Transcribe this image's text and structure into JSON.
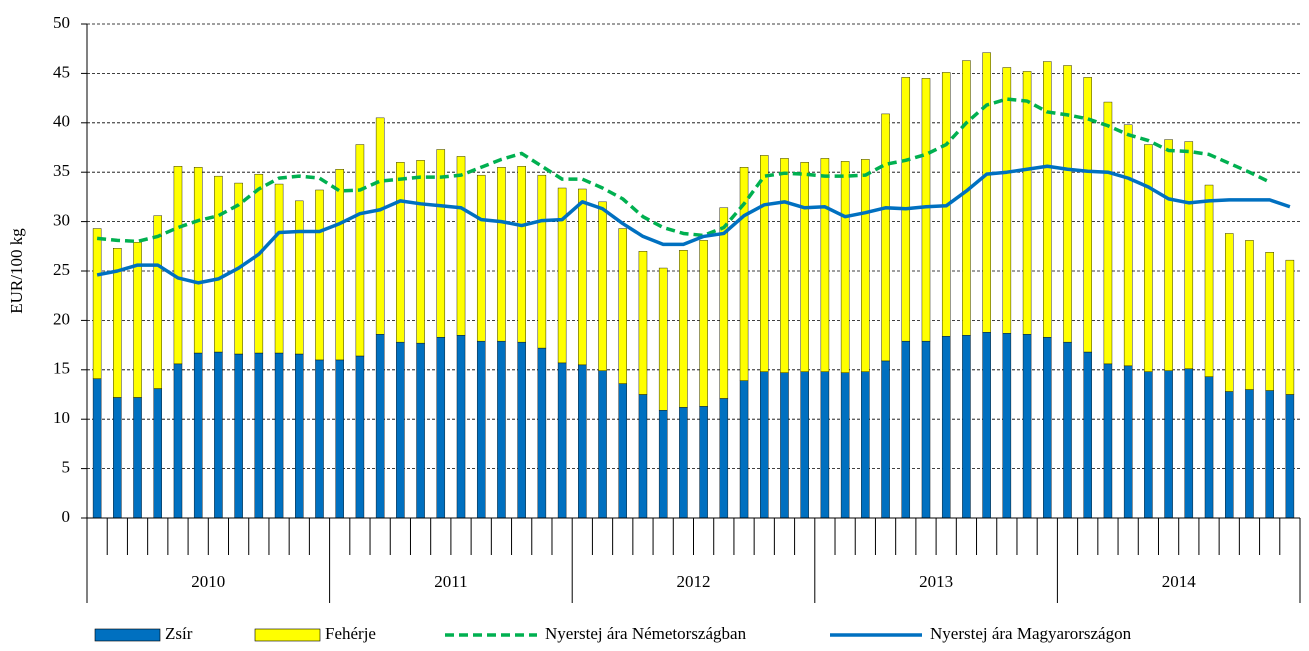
{
  "chart_data": {
    "type": "bar",
    "stacked": true,
    "y_label": "EUR/100 kg",
    "categories": [
      null,
      null,
      null,
      null,
      null,
      null,
      null,
      null,
      null,
      null,
      null,
      null,
      null,
      null,
      null,
      null,
      null,
      null,
      null,
      null,
      null,
      null,
      null,
      null,
      null,
      null,
      null,
      null,
      null,
      null,
      null,
      null,
      null,
      null,
      null,
      null,
      null,
      null,
      null,
      null,
      null,
      null,
      null,
      null,
      null,
      null,
      null,
      null,
      null,
      null,
      null,
      null,
      null,
      null,
      null,
      null,
      null,
      null,
      null,
      null
    ],
    "year_labels": [
      "2010",
      "2011",
      "2012",
      "2013",
      "2014"
    ],
    "ylim": [
      0,
      50
    ],
    "yticks": [
      0,
      5,
      10,
      15,
      20,
      25,
      30,
      35,
      40,
      45,
      50
    ],
    "grid": true,
    "series": [
      {
        "name": "Zsír",
        "type": "bar",
        "color": "#0070c0",
        "values": [
          14.1,
          12.2,
          12.2,
          13.1,
          15.6,
          16.7,
          16.8,
          16.6,
          16.7,
          16.7,
          16.6,
          16.0,
          16.0,
          16.4,
          18.6,
          17.8,
          17.7,
          18.3,
          18.5,
          17.9,
          17.9,
          17.8,
          17.2,
          15.7,
          15.5,
          14.9,
          13.6,
          12.5,
          10.9,
          11.2,
          11.3,
          12.1,
          13.9,
          14.8,
          14.7,
          14.8,
          14.8,
          14.7,
          14.8,
          15.9,
          17.9,
          17.9,
          18.4,
          18.5,
          18.8,
          18.7,
          18.6,
          18.3,
          17.8,
          16.8,
          15.6,
          15.4,
          14.8,
          14.9,
          15.1,
          14.3,
          12.8,
          13.0,
          12.9,
          12.5
        ]
      },
      {
        "name": "Fehérje",
        "type": "bar",
        "color": "#ffff00",
        "values": [
          15.2,
          15.1,
          15.7,
          17.5,
          20.0,
          18.8,
          17.8,
          17.3,
          18.1,
          17.1,
          15.5,
          17.2,
          19.3,
          21.4,
          21.9,
          18.2,
          18.5,
          19.0,
          18.1,
          16.8,
          17.6,
          17.8,
          17.5,
          17.7,
          17.8,
          17.1,
          15.7,
          14.5,
          14.4,
          15.9,
          16.8,
          19.3,
          21.6,
          21.9,
          21.7,
          21.2,
          21.6,
          21.4,
          21.5,
          25.0,
          26.7,
          26.6,
          26.7,
          27.8,
          28.3,
          26.9,
          26.6,
          27.9,
          28.0,
          27.8,
          26.5,
          24.4,
          23.0,
          23.4,
          23.0,
          19.4,
          16.0,
          15.1,
          14.0,
          13.6
        ]
      },
      {
        "name": "Nyerstej ára Németországban",
        "type": "line",
        "dashed": true,
        "color": "#00b050",
        "values": [
          28.3,
          28.1,
          28.0,
          28.5,
          29.4,
          30.1,
          30.6,
          31.7,
          33.3,
          34.4,
          34.6,
          34.4,
          33.1,
          33.2,
          34.1,
          34.3,
          34.5,
          34.5,
          34.7,
          35.5,
          36.3,
          36.9,
          35.6,
          34.3,
          34.3,
          33.4,
          32.3,
          30.5,
          29.4,
          28.8,
          28.6,
          29.4,
          31.8,
          34.6,
          34.9,
          34.8,
          34.6,
          34.6,
          34.7,
          35.8,
          36.2,
          36.8,
          37.8,
          40.0,
          41.8,
          42.4,
          42.2,
          41.1,
          40.8,
          40.4,
          39.7,
          38.8,
          38.2,
          37.2,
          37.1,
          36.8,
          35.9,
          35.0,
          34.0,
          null
        ]
      },
      {
        "name": "Nyerstej ára Magyarországon",
        "type": "line",
        "dashed": false,
        "color": "#0070c0",
        "values": [
          24.6,
          25.0,
          25.6,
          25.6,
          24.3,
          23.8,
          24.2,
          25.3,
          26.7,
          28.9,
          29.0,
          29.0,
          29.8,
          30.8,
          31.2,
          32.1,
          31.8,
          31.6,
          31.4,
          30.2,
          30.0,
          29.6,
          30.1,
          30.2,
          32.0,
          31.3,
          29.8,
          28.5,
          27.7,
          27.7,
          28.5,
          28.8,
          30.6,
          31.7,
          32.0,
          31.4,
          31.5,
          30.5,
          30.9,
          31.4,
          31.3,
          31.5,
          31.6,
          33.1,
          34.8,
          35.0,
          35.3,
          35.6,
          35.3,
          35.1,
          35.0,
          34.4,
          33.5,
          32.3,
          31.9,
          32.1,
          32.2,
          32.2,
          32.2,
          31.5
        ]
      }
    ]
  }
}
